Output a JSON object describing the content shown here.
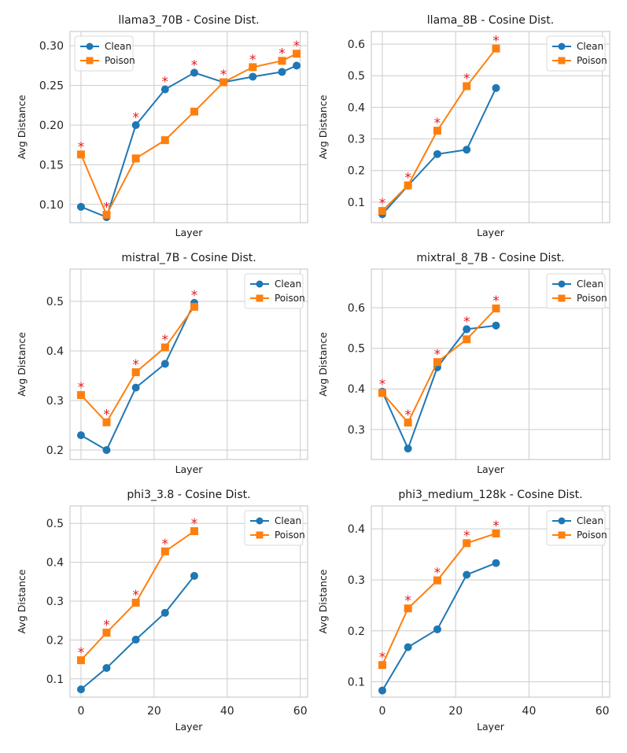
{
  "colors": {
    "clean": "#1f77b4",
    "poison": "#ff7f0e",
    "significance": "#e41a1c",
    "grid": "#cccccc",
    "frame": "#cccccc"
  },
  "legend": {
    "clean_label": "Clean",
    "poison_label": "Poison"
  },
  "significance_marker": "*",
  "chart_data": [
    {
      "type": "line",
      "title": "llama3_70B - Cosine Dist.",
      "xlabel": "Layer",
      "ylabel": "Avg Distance",
      "xlim": [
        -3,
        62
      ],
      "ylim": [
        0.077,
        0.318
      ],
      "xticks": [
        0,
        20,
        40,
        60
      ],
      "xticklabels_shown": false,
      "yticks": [
        0.1,
        0.15,
        0.2,
        0.25,
        0.3
      ],
      "yticklabels": [
        "0.10",
        "0.15",
        "0.20",
        "0.25",
        "0.30"
      ],
      "legend_position": "top-left",
      "series": [
        {
          "name": "Clean",
          "marker": "circle",
          "x": [
            0,
            7,
            15,
            23,
            31,
            39,
            47,
            55,
            59
          ],
          "values": [
            0.097,
            0.084,
            0.2,
            0.245,
            0.266,
            0.254,
            0.261,
            0.267,
            0.275
          ]
        },
        {
          "name": "Poison",
          "marker": "square",
          "x": [
            0,
            7,
            15,
            23,
            31,
            39,
            47,
            55,
            59
          ],
          "values": [
            0.163,
            0.087,
            0.158,
            0.181,
            0.217,
            0.254,
            0.273,
            0.281,
            0.29
          ]
        }
      ],
      "significant_x": [
        0,
        7,
        15,
        23,
        31,
        39,
        47,
        55,
        59
      ]
    },
    {
      "type": "line",
      "title": "llama_8B - Cosine Dist.",
      "xlabel": "Layer",
      "ylabel": "Avg Distance",
      "xlim": [
        -3,
        62
      ],
      "ylim": [
        0.035,
        0.64
      ],
      "xticks": [
        0,
        20,
        40,
        60
      ],
      "xticklabels_shown": false,
      "yticks": [
        0.1,
        0.2,
        0.3,
        0.4,
        0.5,
        0.6
      ],
      "yticklabels": [
        "0.1",
        "0.2",
        "0.3",
        "0.4",
        "0.5",
        "0.6"
      ],
      "legend_position": "top-right",
      "series": [
        {
          "name": "Clean",
          "marker": "circle",
          "x": [
            0,
            7,
            15,
            23,
            31
          ],
          "values": [
            0.062,
            0.152,
            0.252,
            0.266,
            0.461
          ]
        },
        {
          "name": "Poison",
          "marker": "square",
          "x": [
            0,
            7,
            15,
            23,
            31
          ],
          "values": [
            0.072,
            0.153,
            0.326,
            0.467,
            0.586
          ]
        }
      ],
      "significant_x": [
        0,
        7,
        15,
        23,
        31
      ]
    },
    {
      "type": "line",
      "title": "mistral_7B - Cosine Dist.",
      "xlabel": "Layer",
      "ylabel": "Avg Distance",
      "xlim": [
        -3,
        62
      ],
      "ylim": [
        0.181,
        0.565
      ],
      "xticks": [
        0,
        20,
        40,
        60
      ],
      "xticklabels_shown": false,
      "yticks": [
        0.2,
        0.3,
        0.4,
        0.5
      ],
      "yticklabels": [
        "0.2",
        "0.3",
        "0.4",
        "0.5"
      ],
      "legend_position": "top-right",
      "series": [
        {
          "name": "Clean",
          "marker": "circle",
          "x": [
            0,
            7,
            15,
            23,
            31
          ],
          "values": [
            0.23,
            0.2,
            0.326,
            0.374,
            0.497
          ]
        },
        {
          "name": "Poison",
          "marker": "square",
          "x": [
            0,
            7,
            15,
            23,
            31
          ],
          "values": [
            0.311,
            0.256,
            0.357,
            0.407,
            0.489
          ]
        }
      ],
      "significant_x": [
        0,
        7,
        15,
        23,
        31
      ]
    },
    {
      "type": "line",
      "title": "mixtral_8_7B - Cosine Dist.",
      "xlabel": "Layer",
      "ylabel": "Avg Distance",
      "xlim": [
        -3,
        62
      ],
      "ylim": [
        0.226,
        0.695
      ],
      "xticks": [
        0,
        20,
        40,
        60
      ],
      "xticklabels_shown": false,
      "yticks": [
        0.3,
        0.4,
        0.5,
        0.6
      ],
      "yticklabels": [
        "0.3",
        "0.4",
        "0.5",
        "0.6"
      ],
      "legend_position": "top-right",
      "series": [
        {
          "name": "Clean",
          "marker": "circle",
          "x": [
            0,
            7,
            15,
            23,
            31
          ],
          "values": [
            0.393,
            0.253,
            0.453,
            0.547,
            0.556
          ]
        },
        {
          "name": "Poison",
          "marker": "square",
          "x": [
            0,
            7,
            15,
            23,
            31
          ],
          "values": [
            0.39,
            0.317,
            0.466,
            0.522,
            0.598
          ]
        }
      ],
      "significant_x": [
        0,
        7,
        15,
        23,
        31
      ]
    },
    {
      "type": "line",
      "title": "phi3_3.8 - Cosine Dist.",
      "xlabel": "Layer",
      "ylabel": "Avg Distance",
      "xlim": [
        -3,
        62
      ],
      "ylim": [
        0.053,
        0.545
      ],
      "xticks": [
        0,
        20,
        40,
        60
      ],
      "xticklabels_shown": true,
      "xticklabels": [
        "0",
        "20",
        "40",
        "60"
      ],
      "yticks": [
        0.1,
        0.2,
        0.3,
        0.4,
        0.5
      ],
      "yticklabels": [
        "0.1",
        "0.2",
        "0.3",
        "0.4",
        "0.5"
      ],
      "legend_position": "top-right",
      "series": [
        {
          "name": "Clean",
          "marker": "circle",
          "x": [
            0,
            7,
            15,
            23,
            31
          ],
          "values": [
            0.073,
            0.128,
            0.201,
            0.27,
            0.365
          ]
        },
        {
          "name": "Poison",
          "marker": "square",
          "x": [
            0,
            7,
            15,
            23,
            31
          ],
          "values": [
            0.148,
            0.219,
            0.296,
            0.428,
            0.48
          ]
        }
      ],
      "significant_x": [
        0,
        7,
        15,
        23,
        31
      ]
    },
    {
      "type": "line",
      "title": "phi3_medium_128k - Cosine Dist.",
      "xlabel": "Layer",
      "ylabel": "Avg Distance",
      "xlim": [
        -3,
        62
      ],
      "ylim": [
        0.07,
        0.445
      ],
      "xticks": [
        0,
        20,
        40,
        60
      ],
      "xticklabels_shown": true,
      "xticklabels": [
        "0",
        "20",
        "40",
        "60"
      ],
      "yticks": [
        0.1,
        0.2,
        0.3,
        0.4
      ],
      "yticklabels": [
        "0.1",
        "0.2",
        "0.3",
        "0.4"
      ],
      "legend_position": "top-right",
      "series": [
        {
          "name": "Clean",
          "marker": "circle",
          "x": [
            0,
            7,
            15,
            23,
            31
          ],
          "values": [
            0.083,
            0.168,
            0.203,
            0.31,
            0.333
          ]
        },
        {
          "name": "Poison",
          "marker": "square",
          "x": [
            0,
            7,
            15,
            23,
            31
          ],
          "values": [
            0.133,
            0.244,
            0.299,
            0.372,
            0.391
          ]
        }
      ],
      "significant_x": [
        0,
        7,
        15,
        23,
        31
      ]
    }
  ]
}
